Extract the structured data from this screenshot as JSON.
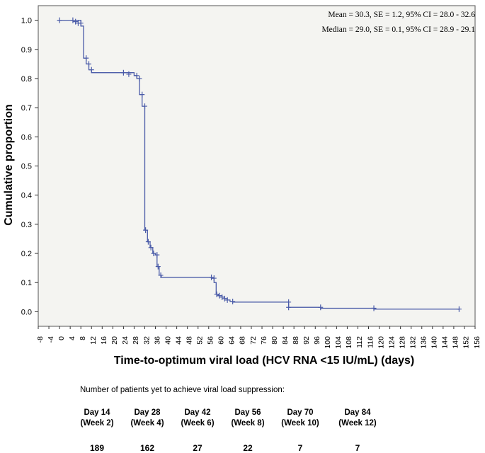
{
  "chart_data": {
    "type": "line",
    "subtype": "kaplan-meier-step",
    "xlabel": "Time-to-optimum viral load (HCV RNA <15 IU/mL) (days)",
    "ylabel": "Cumulative proportion",
    "xlim": [
      -8,
      156
    ],
    "ylim": [
      -0.05,
      1.05
    ],
    "xticks": [
      -8,
      -4,
      0,
      4,
      8,
      12,
      16,
      20,
      24,
      28,
      32,
      36,
      40,
      44,
      48,
      52,
      56,
      60,
      64,
      68,
      72,
      76,
      80,
      84,
      88,
      92,
      96,
      100,
      104,
      108,
      112,
      116,
      120,
      124,
      128,
      132,
      136,
      140,
      144,
      148,
      152,
      156
    ],
    "yticks": [
      0.0,
      0.1,
      0.2,
      0.3,
      0.4,
      0.5,
      0.6,
      0.7,
      0.8,
      0.9,
      1.0
    ],
    "ytick_labels": [
      "0.0",
      "0.1",
      "0.2",
      "0.3",
      "0.4",
      "0.5",
      "0.6",
      "0.7",
      "0.8",
      "0.9",
      "1.0"
    ],
    "annotations": [
      "Mean = 30.3, SE = 1.2, 95% CI = 28.0 - 32.6",
      "Median = 29.0, SE = 0.1, 95% CI = 28.9 - 29.1"
    ],
    "step_points": [
      [
        0,
        1.0
      ],
      [
        8,
        1.0
      ],
      [
        8,
        0.98
      ],
      [
        9,
        0.98
      ],
      [
        9,
        0.87
      ],
      [
        10,
        0.87
      ],
      [
        10,
        0.85
      ],
      [
        11,
        0.85
      ],
      [
        11,
        0.83
      ],
      [
        12,
        0.83
      ],
      [
        12,
        0.82
      ],
      [
        28,
        0.82
      ],
      [
        28,
        0.81
      ],
      [
        29,
        0.81
      ],
      [
        29,
        0.8
      ],
      [
        30,
        0.8
      ],
      [
        30,
        0.745
      ],
      [
        31,
        0.745
      ],
      [
        31,
        0.705
      ],
      [
        32,
        0.705
      ],
      [
        32,
        0.28
      ],
      [
        33,
        0.28
      ],
      [
        33,
        0.24
      ],
      [
        34,
        0.24
      ],
      [
        34,
        0.22
      ],
      [
        35,
        0.22
      ],
      [
        35,
        0.2
      ],
      [
        36,
        0.2
      ],
      [
        36,
        0.195
      ],
      [
        36.6,
        0.195
      ],
      [
        36.6,
        0.155
      ],
      [
        37.4,
        0.155
      ],
      [
        37.4,
        0.125
      ],
      [
        38.2,
        0.125
      ],
      [
        38.2,
        0.118
      ],
      [
        57,
        0.118
      ],
      [
        57,
        0.115
      ],
      [
        58,
        0.115
      ],
      [
        58,
        0.1
      ],
      [
        58.8,
        0.1
      ],
      [
        58.8,
        0.06
      ],
      [
        59.6,
        0.06
      ],
      [
        59.6,
        0.055
      ],
      [
        61,
        0.055
      ],
      [
        61,
        0.05
      ],
      [
        62,
        0.05
      ],
      [
        62,
        0.045
      ],
      [
        63,
        0.045
      ],
      [
        63,
        0.04
      ],
      [
        64,
        0.04
      ],
      [
        64,
        0.035
      ],
      [
        65,
        0.035
      ],
      [
        65,
        0.033
      ],
      [
        86,
        0.033
      ],
      [
        86,
        0.015
      ],
      [
        98,
        0.015
      ],
      [
        98,
        0.012
      ],
      [
        118,
        0.012
      ],
      [
        118,
        0.009
      ],
      [
        150,
        0.009
      ],
      [
        150,
        0.006
      ]
    ],
    "censored": [
      [
        0,
        1.0
      ],
      [
        5,
        1.0
      ],
      [
        6,
        0.995
      ],
      [
        7,
        0.99
      ],
      [
        8,
        0.99
      ],
      [
        10,
        0.87
      ],
      [
        11,
        0.85
      ],
      [
        12,
        0.83
      ],
      [
        24,
        0.82
      ],
      [
        26,
        0.815
      ],
      [
        29,
        0.81
      ],
      [
        30,
        0.8
      ],
      [
        31,
        0.745
      ],
      [
        32,
        0.705
      ],
      [
        32.3,
        0.28
      ],
      [
        33.3,
        0.24
      ],
      [
        34.3,
        0.22
      ],
      [
        35.3,
        0.2
      ],
      [
        36.6,
        0.195
      ],
      [
        37,
        0.155
      ],
      [
        38,
        0.125
      ],
      [
        57,
        0.118
      ],
      [
        58,
        0.115
      ],
      [
        59,
        0.06
      ],
      [
        60,
        0.055
      ],
      [
        61,
        0.05
      ],
      [
        62,
        0.045
      ],
      [
        63,
        0.04
      ],
      [
        65,
        0.035
      ],
      [
        86,
        0.033
      ],
      [
        86,
        0.015
      ],
      [
        98,
        0.015
      ],
      [
        118,
        0.012
      ],
      [
        150,
        0.009
      ]
    ],
    "line_color": "#4a5ba8",
    "plot_bg": "#f4f4f1",
    "legend": "none"
  },
  "risk_table": {
    "title": "Number of patients yet to achieve viral load suppression:",
    "columns": [
      {
        "day": "Day 14",
        "week": "(Week 2)",
        "count": "189"
      },
      {
        "day": "Day 28",
        "week": "(Week 4)",
        "count": "162"
      },
      {
        "day": "Day 42",
        "week": "(Week 6)",
        "count": "27"
      },
      {
        "day": "Day 56",
        "week": "(Week 8)",
        "count": "22"
      },
      {
        "day": "Day 70",
        "week": "(Week 10)",
        "count": "7"
      },
      {
        "day": "Day 84",
        "week": "(Week 12)",
        "count": "7"
      }
    ]
  }
}
